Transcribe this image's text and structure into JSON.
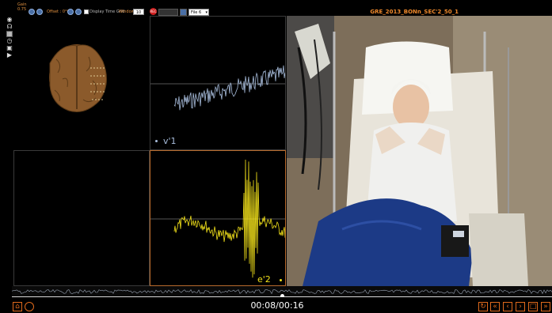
{
  "toolbar": {
    "gain_label": "Gain",
    "gain_value": "0.75",
    "offset_label": "Offset : 0°C",
    "display_time_grid_label": "Display Time Grid",
    "window_label": "Window",
    "window_value": "10",
    "record_label": "REC",
    "filter_select_value": "File 6"
  },
  "video": {
    "title": "GRE_2013_BONn_SEC'2_50_1"
  },
  "channels": [
    {
      "label": "v'1",
      "color": "#a9bedd"
    },
    {
      "label": "e'2",
      "color": "#f2e11a"
    }
  ],
  "playback": {
    "current_time": "00:08",
    "separator": "/",
    "total_time": "00:16",
    "progress": 0.5
  },
  "colors": {
    "accent": "#e06a1c",
    "brain": "#8b5a2b"
  },
  "icons": {
    "side_tools": [
      "brain-icon",
      "headset-icon",
      "grid-icon",
      "clock-icon",
      "camera-icon",
      "play-icon"
    ],
    "bottom_left": [
      "home-icon",
      "circle-icon"
    ],
    "bottom_right": [
      "refresh-icon",
      "rewind-icon",
      "step-back-icon",
      "step-forward-icon",
      "stop-icon",
      "fast-forward-icon"
    ]
  }
}
